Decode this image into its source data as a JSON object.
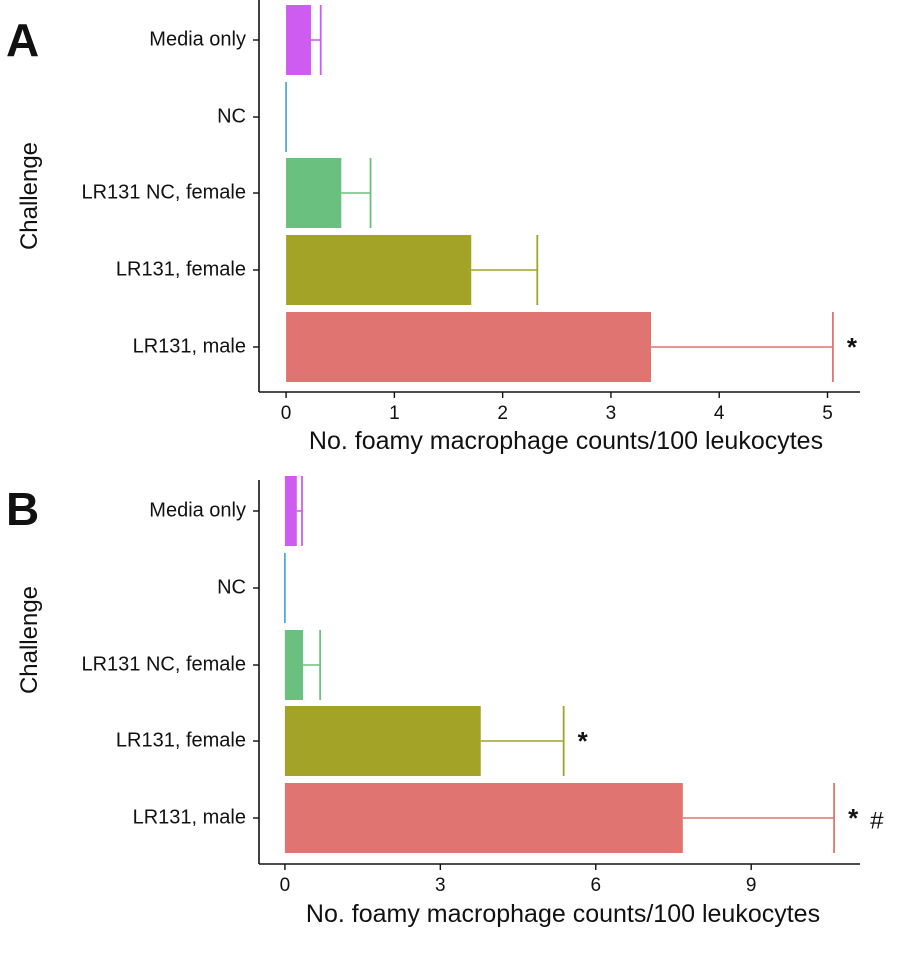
{
  "figure": {
    "y_axis_title": "Challenge",
    "x_axis_title": "No. foamy macrophage counts/100 leukocytes"
  },
  "colors": {
    "Media only": "#cf5cf0",
    "NC": "#3fa3cf",
    "LR131 NC, female": "#69c07f",
    "LR131, female": "#a3a327",
    "LR131, male": "#e07470"
  },
  "chart_data": [
    {
      "panel": "A",
      "type": "bar",
      "orientation": "horizontal",
      "categories": [
        "Media only",
        "NC",
        "LR131 NC, female",
        "LR131, female",
        "LR131, male"
      ],
      "values": [
        0.23,
        0.0,
        0.51,
        1.71,
        3.37
      ],
      "error_upper": [
        0.32,
        0.0,
        0.78,
        2.32,
        5.05
      ],
      "annotations": [
        "",
        "",
        "",
        "",
        "*"
      ],
      "xlabel": "No. foamy macrophage counts/100 leukocytes",
      "ylabel": "Challenge",
      "xlim": [
        -0.25,
        5.3
      ],
      "xticks": [
        "0",
        "1",
        "2",
        "3",
        "4",
        "5"
      ],
      "grid": false,
      "legend": "none"
    },
    {
      "panel": "B",
      "type": "bar",
      "orientation": "horizontal",
      "categories": [
        "Media only",
        "NC",
        "LR131 NC, female",
        "LR131, female",
        "LR131, male"
      ],
      "values": [
        0.23,
        0.0,
        0.35,
        3.78,
        7.68
      ],
      "error_upper": [
        0.33,
        0.0,
        0.68,
        5.38,
        10.6
      ],
      "annotations": [
        "",
        "",
        "",
        "*",
        "* #"
      ],
      "xlabel": "No. foamy macrophage counts/100 leukocytes",
      "ylabel": "Challenge",
      "xlim": [
        -0.5,
        11.1
      ],
      "xticks": [
        "0",
        "3",
        "6",
        "9"
      ],
      "grid": false,
      "legend": "none"
    }
  ]
}
